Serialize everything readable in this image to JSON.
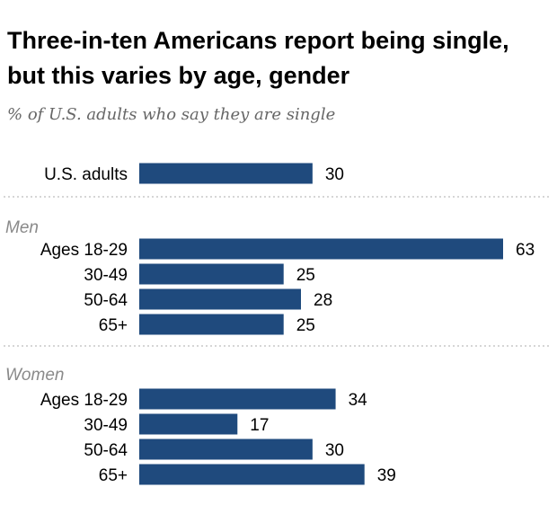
{
  "title": "Three-in-ten Americans report being single, but this varies by age, gender",
  "subtitle": "% of U.S. adults who say they are single",
  "colors": {
    "bar": "#1f4a7d",
    "group_label": "#8a8a8a",
    "divider": "#c8c8c8"
  },
  "chart_data": {
    "type": "bar",
    "orientation": "horizontal",
    "title": "Three-in-ten Americans report being single, but this varies by age, gender",
    "subtitle": "% of U.S. adults who say they are single",
    "value_labels": true,
    "grid": false,
    "xlim": [
      0,
      63
    ],
    "groups": [
      {
        "name": "",
        "bars": [
          {
            "label": "U.S. adults",
            "value": 30
          }
        ]
      },
      {
        "name": "Men",
        "bars": [
          {
            "label": "Ages 18-29",
            "value": 63
          },
          {
            "label": "30-49",
            "value": 25
          },
          {
            "label": "50-64",
            "value": 28
          },
          {
            "label": "65+",
            "value": 25
          }
        ]
      },
      {
        "name": "Women",
        "bars": [
          {
            "label": "Ages 18-29",
            "value": 34
          },
          {
            "label": "30-49",
            "value": 17
          },
          {
            "label": "50-64",
            "value": 30
          },
          {
            "label": "65+",
            "value": 39
          }
        ]
      }
    ]
  }
}
